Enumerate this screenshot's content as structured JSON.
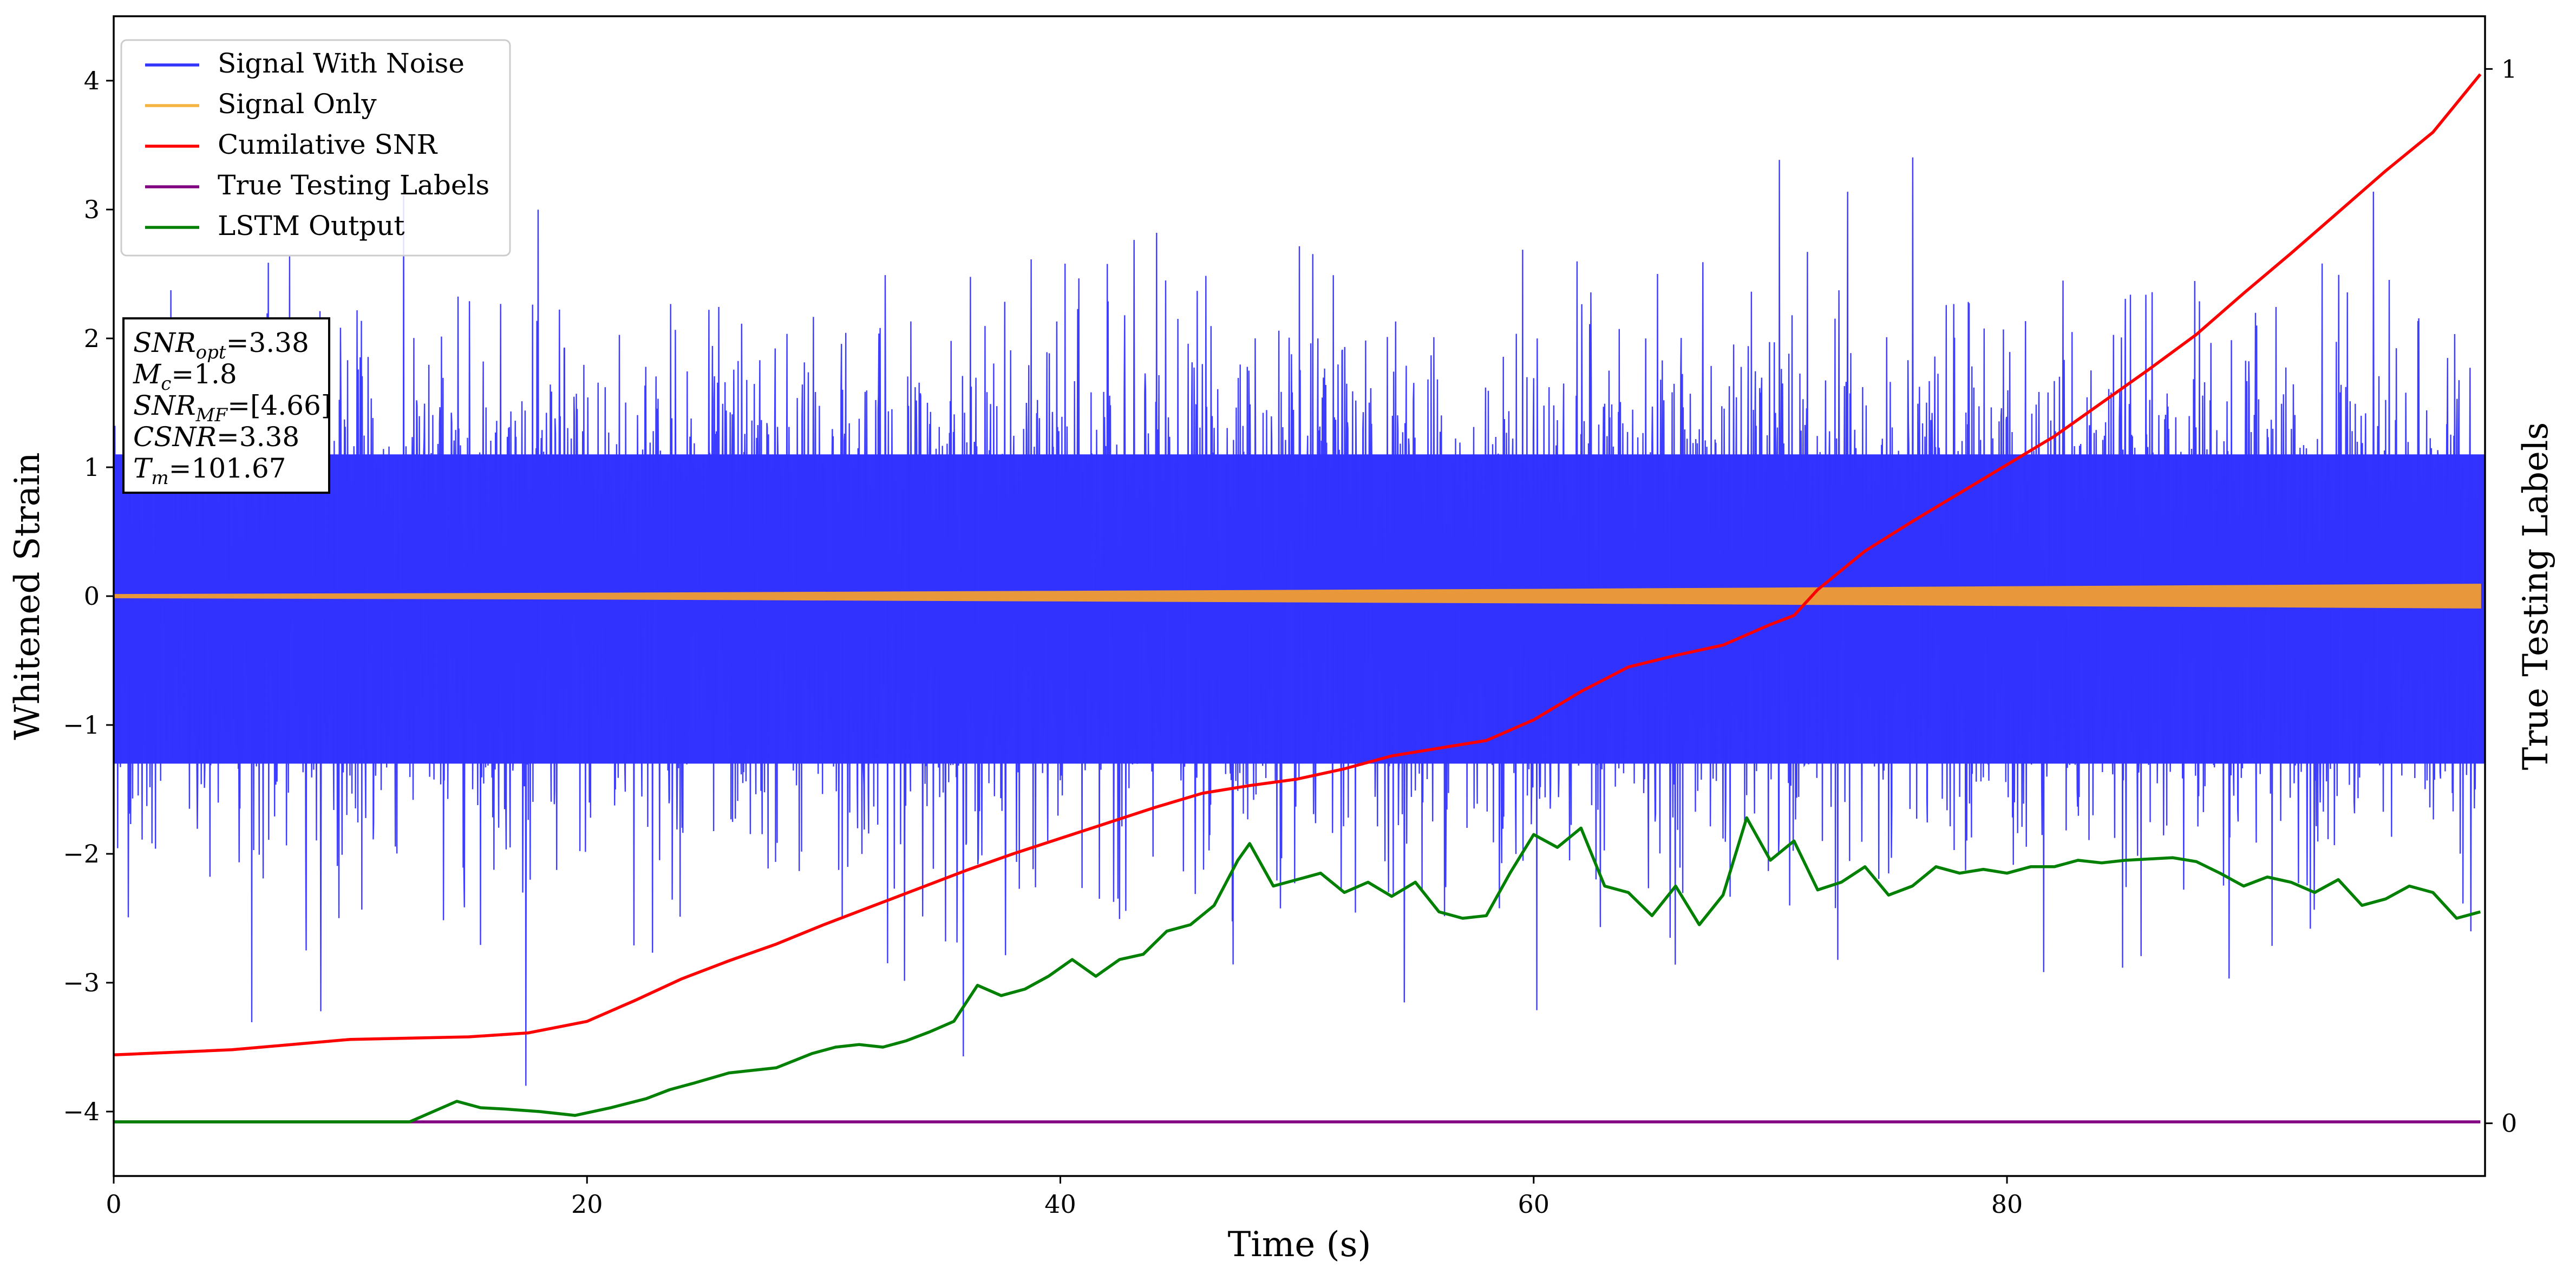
{
  "chart_data": {
    "type": "line",
    "xlabel": "Time (s)",
    "ylabel": "Whitened Strain",
    "ylabel_right": "True Testing Labels",
    "xlim": [
      0,
      100.2
    ],
    "ylim": [
      -4.5,
      4.5
    ],
    "ylim_right": [
      -0.05,
      1.05
    ],
    "x_ticks": [
      0,
      20,
      40,
      60,
      80
    ],
    "x_tick_labels": [
      "0",
      "20",
      "40",
      "60",
      "80"
    ],
    "y_ticks": [
      4,
      3,
      2,
      1,
      0,
      -1,
      -2,
      -3,
      -4
    ],
    "y_tick_labels": [
      "4",
      "3",
      "2",
      "1",
      "0",
      "−1",
      "−2",
      "−3",
      "−4"
    ],
    "y_right_ticks": [
      1,
      0
    ],
    "y_right_tick_labels": [
      "1",
      "0"
    ],
    "legend_position": "top-left",
    "legend": [
      {
        "label": "Signal With Noise",
        "color": "#3333ff"
      },
      {
        "label": "Signal Only",
        "color": "#f5b342"
      },
      {
        "label": "Cumilative SNR",
        "color": "#ff0000"
      },
      {
        "label": "True Testing Labels",
        "color": "#800080"
      },
      {
        "label": "LSTM Output",
        "color": "#008000"
      }
    ],
    "noise_band": {
      "series": "Signal With Noise",
      "color": "#3333ff",
      "typical_amplitude": 1.9,
      "peak_amplitude": 3.6,
      "dense_upper": 1.1,
      "dense_lower": -1.3
    },
    "signal_envelope": {
      "series": "Signal Only",
      "color": "#e8983a",
      "x": [
        0,
        20,
        40,
        60,
        70,
        80,
        90,
        100
      ],
      "amplitude": [
        0.01,
        0.02,
        0.035,
        0.05,
        0.06,
        0.07,
        0.08,
        0.09
      ]
    },
    "series": [
      {
        "name": "Cumilative SNR",
        "color": "#ff0000",
        "axis": "left",
        "x": [
          0,
          5,
          10,
          15,
          17.5,
          20,
          22,
          24,
          26,
          28,
          30,
          32,
          34,
          36,
          38,
          40,
          42,
          44,
          46,
          48,
          50,
          52,
          54,
          56,
          58,
          60,
          62,
          64,
          66,
          68,
          70,
          71,
          72,
          74,
          76,
          78,
          80,
          82,
          84,
          86,
          88,
          90,
          92,
          94,
          96,
          98,
          100
        ],
        "y": [
          -3.56,
          -3.52,
          -3.44,
          -3.42,
          -3.39,
          -3.3,
          -3.14,
          -2.97,
          -2.83,
          -2.7,
          -2.55,
          -2.41,
          -2.27,
          -2.13,
          -2.0,
          -1.88,
          -1.76,
          -1.64,
          -1.53,
          -1.47,
          -1.42,
          -1.34,
          -1.24,
          -1.18,
          -1.12,
          -0.96,
          -0.74,
          -0.55,
          -0.46,
          -0.38,
          -0.22,
          -0.15,
          0.05,
          0.35,
          0.58,
          0.8,
          1.02,
          1.24,
          1.5,
          1.76,
          2.03,
          2.35,
          2.66,
          2.98,
          3.3,
          3.6,
          4.05
        ]
      },
      {
        "name": "True Testing Labels",
        "color": "#800080",
        "axis": "left",
        "x": [
          0,
          100
        ],
        "y": [
          -4.08,
          -4.08
        ]
      },
      {
        "name": "LSTM Output",
        "color": "#008000",
        "axis": "left",
        "x": [
          0,
          10,
          12.5,
          13.5,
          14.5,
          15.5,
          16.5,
          18,
          19.5,
          21,
          22.5,
          23.5,
          24.5,
          26,
          28,
          29.5,
          30.5,
          31.5,
          32.5,
          33.5,
          34.5,
          35.5,
          36.5,
          37.5,
          38.5,
          39.5,
          40.5,
          41.5,
          42.5,
          43.5,
          44.5,
          45.5,
          46.5,
          47.5,
          48,
          49,
          50,
          51,
          52,
          53,
          54,
          55,
          56,
          57,
          58,
          59,
          60,
          61,
          62,
          63,
          64,
          65,
          66,
          67,
          68,
          69,
          70,
          71,
          72,
          73,
          74,
          75,
          76,
          77,
          78,
          79,
          80,
          81,
          82,
          83,
          84,
          85,
          86,
          87,
          88,
          89,
          90,
          91,
          92,
          93,
          94,
          95,
          96,
          97,
          98,
          99,
          100
        ],
        "y": [
          -4.08,
          -4.08,
          -4.08,
          -4.0,
          -3.92,
          -3.97,
          -3.98,
          -4.0,
          -4.03,
          -3.97,
          -3.9,
          -3.83,
          -3.78,
          -3.7,
          -3.66,
          -3.55,
          -3.5,
          -3.48,
          -3.5,
          -3.45,
          -3.38,
          -3.3,
          -3.02,
          -3.1,
          -3.05,
          -2.95,
          -2.82,
          -2.95,
          -2.82,
          -2.78,
          -2.6,
          -2.55,
          -2.4,
          -2.05,
          -1.92,
          -2.25,
          -2.2,
          -2.15,
          -2.3,
          -2.22,
          -2.33,
          -2.22,
          -2.45,
          -2.5,
          -2.48,
          -2.15,
          -1.85,
          -1.95,
          -1.8,
          -2.25,
          -2.3,
          -2.48,
          -2.25,
          -2.55,
          -2.32,
          -1.72,
          -2.05,
          -1.9,
          -2.28,
          -2.22,
          -2.1,
          -2.32,
          -2.25,
          -2.1,
          -2.15,
          -2.12,
          -2.15,
          -2.1,
          -2.1,
          -2.05,
          -2.07,
          -2.05,
          -2.04,
          -2.03,
          -2.06,
          -2.15,
          -2.25,
          -2.18,
          -2.22,
          -2.3,
          -2.2,
          -2.4,
          -2.35,
          -2.25,
          -2.3,
          -2.5,
          -2.45
        ]
      }
    ],
    "annotation_box": {
      "lines": [
        {
          "sym": "SNR",
          "sub": "opt",
          "val": "=3.38"
        },
        {
          "sym": "M",
          "sub": "c",
          "val": "=1.8"
        },
        {
          "sym": "SNR",
          "sub": "MF",
          "val": "=[4.66]"
        },
        {
          "sym": "CSNR",
          "sub": "",
          "val": "=3.38"
        },
        {
          "sym": "T",
          "sub": "m",
          "val": "=101.67"
        }
      ]
    }
  }
}
